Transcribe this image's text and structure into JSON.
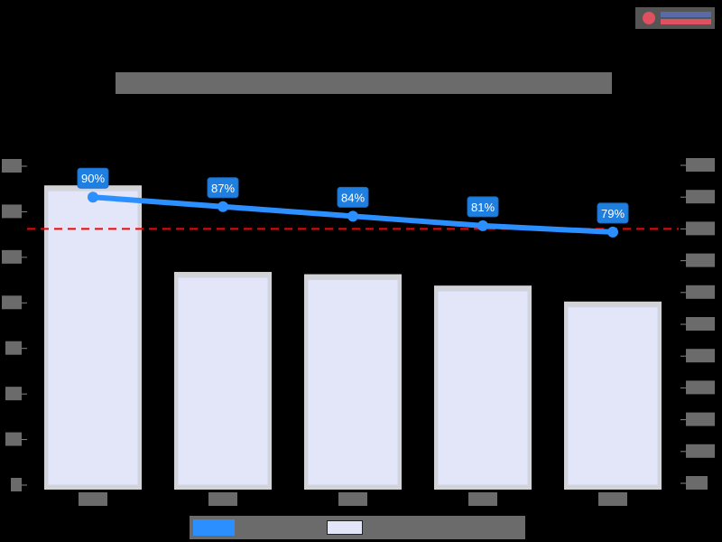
{
  "logo": {
    "name": "logo"
  },
  "chart_data": {
    "type": "bar+line",
    "title": "[redacted]",
    "categories": [
      "[redacted]",
      "[redacted]",
      "[redacted]",
      "[redacted]",
      "[redacted]"
    ],
    "series": [
      {
        "name": "[redacted]",
        "type": "bar",
        "axis": "left",
        "values": [
          6.5,
          4.6,
          4.55,
          4.3,
          3.95
        ],
        "color": "#e2e6f8"
      },
      {
        "name": "[redacted]",
        "type": "line",
        "axis": "right",
        "values": [
          90,
          87,
          84,
          81,
          79
        ],
        "labels": [
          "90%",
          "87%",
          "84%",
          "81%",
          "79%"
        ],
        "color": "#2b8fff"
      }
    ],
    "reference_line": {
      "axis": "right",
      "value": 80,
      "color": "#ff0000",
      "style": "dashed"
    },
    "left_axis": {
      "ticks": 8,
      "ylim": [
        0,
        7
      ],
      "labels": "[redacted]"
    },
    "right_axis": {
      "ticks": 11,
      "ylim": [
        0,
        100
      ],
      "labels": "[redacted]"
    },
    "legend": {
      "position": "bottom",
      "entries": [
        "[redacted]",
        "[redacted]"
      ]
    },
    "grid": false
  },
  "colors": {
    "background": "#000000",
    "bar": "#e2e6f8",
    "line": "#2b8fff",
    "threshold": "#ff0000",
    "redaction": "#6b6b6b"
  }
}
